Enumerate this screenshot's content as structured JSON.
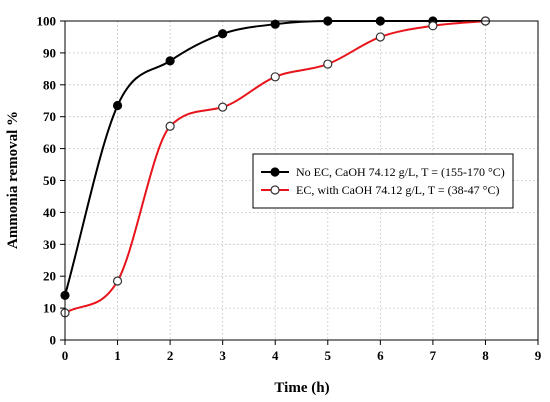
{
  "chart_data": {
    "type": "line",
    "xlabel": "Time (h)",
    "ylabel": "Ammonia removal %",
    "xlim": [
      0,
      9
    ],
    "ylim": [
      0,
      100
    ],
    "x_ticks": [
      0,
      1,
      2,
      3,
      4,
      5,
      6,
      7,
      8,
      9
    ],
    "y_ticks": [
      0,
      10,
      20,
      30,
      40,
      50,
      60,
      70,
      80,
      90,
      100
    ],
    "grid": true,
    "legend_position": "center-right",
    "series": [
      {
        "name": "No EC, CaOH 74.12 g/L, T = (155-170 °C)",
        "color": "#000000",
        "marker": "filled-circle",
        "x": [
          0,
          1,
          2,
          3,
          4,
          5,
          6,
          7,
          8
        ],
        "y": [
          14,
          73.5,
          87.5,
          96,
          99,
          100,
          100,
          100,
          100
        ]
      },
      {
        "name": "EC, with CaOH 74.12 g/L, T = (38-47 °C)",
        "color": "#e8141b",
        "marker": "open-circle",
        "x": [
          0,
          1,
          2,
          3,
          4,
          5,
          6,
          7,
          8
        ],
        "y": [
          8.5,
          18.5,
          67,
          73,
          82.5,
          86.5,
          95,
          98.5,
          100
        ]
      }
    ]
  }
}
